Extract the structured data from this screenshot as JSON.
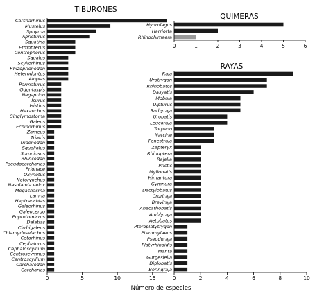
{
  "figure": {
    "xlabel": "Número de especies"
  },
  "chart_data": [
    {
      "type": "bar",
      "orientation": "horizontal",
      "title": "TIBURONES",
      "xlim": [
        0,
        17
      ],
      "xticks": [
        0,
        5,
        10,
        15
      ],
      "categories": [
        "Carcharhinus",
        "Mustelus",
        "Sphyrna",
        "Apristurus",
        "Squatina",
        "Etmopterus",
        "Centrophorus",
        "Squalus",
        "Scyliorhinus",
        "Rhizoprionodon",
        "Heterodontus",
        "Alopias",
        "Parmaturus",
        "Odontaspis",
        "Negaprion",
        "Isurus",
        "Isistius",
        "Hexanchus",
        "Ginglymostoma",
        "Galeus",
        "Echinorhinus",
        "Zameus",
        "Triakis",
        "Triaenodon",
        "Squaliolus",
        "Somniosus",
        "Rhincodon",
        "Pseudocarcharias",
        "Prionace",
        "Oxynotus",
        "Notorynchus",
        "Nasolamia velox",
        "Megachasma",
        "Lamna",
        "Heptranchias",
        "Galeorhinus",
        "Galeocerdo",
        "Euprotomicrus",
        "Dalatias",
        "Cirrhigaleus",
        "Chlamydoselachus",
        "Cetorhinus",
        "Cephalurus",
        "Cephaloscyllium",
        "Centroscymnus",
        "Centroscyllium",
        "Carcharodon",
        "Carcharias"
      ],
      "values": [
        17,
        9,
        7,
        6,
        4,
        4,
        4,
        3,
        3,
        3,
        3,
        3,
        2,
        2,
        2,
        2,
        2,
        2,
        2,
        2,
        2,
        1,
        1,
        1,
        1,
        1,
        1,
        1,
        1,
        1,
        1,
        1,
        1,
        1,
        1,
        1,
        1,
        1,
        1,
        1,
        1,
        1,
        1,
        1,
        1,
        1,
        1,
        1
      ]
    },
    {
      "type": "bar",
      "orientation": "horizontal",
      "title": "QUIMERAS",
      "xlim": [
        0,
        6
      ],
      "xticks": [
        0,
        1,
        2,
        3,
        4,
        5,
        6
      ],
      "categories": [
        "Hydrolagus",
        "Harriotta",
        "Rhinochimaera"
      ],
      "values": [
        5,
        2,
        1
      ]
    },
    {
      "type": "bar",
      "orientation": "horizontal",
      "title": "RAYAS",
      "xlim": [
        0,
        10
      ],
      "xticks": [
        0,
        2,
        4,
        6,
        8,
        10
      ],
      "categories": [
        "Raja",
        "Urotrygon",
        "Rhinobatos",
        "Dasyatis",
        "Mobula",
        "Dipturus",
        "Bathyraja",
        "Urobatis",
        "Leucoraja",
        "Torpedo",
        "Narcine",
        "Fenestraja",
        "Zapteryx",
        "Rhinoptera",
        "Rajella",
        "Pristis",
        "Myliobatis",
        "Himantura",
        "Gymnura",
        "Dactylobatus",
        "Cruriraja",
        "Breviraja",
        "Anacathobatis",
        "Amblyraja",
        "Aetobatus",
        "Pteroplatytrygon",
        "Pteromylaeus",
        "Pseudoraja",
        "Platyrhinoidis",
        "Manta",
        "Gurgesiella",
        "Diplobatis",
        "Beringraja"
      ],
      "values": [
        9,
        7,
        7,
        6,
        5,
        5,
        5,
        4,
        4,
        3,
        3,
        3,
        2,
        2,
        2,
        2,
        2,
        2,
        2,
        2,
        2,
        2,
        2,
        2,
        2,
        1,
        1,
        1,
        1,
        1,
        1,
        1,
        1
      ]
    }
  ]
}
